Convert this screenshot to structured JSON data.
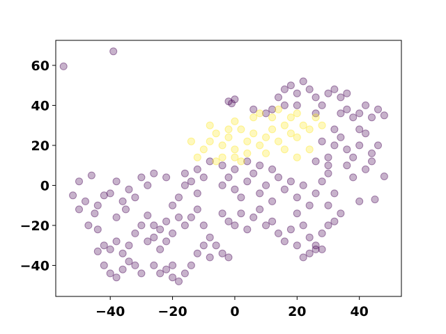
{
  "chart_data": {
    "type": "scatter",
    "title": "",
    "xlabel": "",
    "ylabel": "",
    "xlim": [
      -57.5,
      53.5
    ],
    "ylim": [
      -55.5,
      72.5
    ],
    "xticks": [
      -40,
      -20,
      0,
      20,
      40
    ],
    "yticks": [
      -40,
      -20,
      0,
      20,
      40,
      60
    ],
    "xtick_labels": [
      "−40",
      "−20",
      "0",
      "20",
      "40"
    ],
    "ytick_labels": [
      "−40",
      "−20",
      "0",
      "20",
      "40",
      "60"
    ],
    "grid": false,
    "legend": "none",
    "marker_opacity": 0.3,
    "series": [
      {
        "color": "#440154",
        "points": [
          [
            -55,
            59.5
          ],
          [
            -39,
            67
          ],
          [
            -46,
            5
          ],
          [
            -50,
            2
          ],
          [
            -52,
            -5
          ],
          [
            -48,
            -8
          ],
          [
            -44,
            -10
          ],
          [
            -42,
            -5
          ],
          [
            -45,
            -14
          ],
          [
            -50,
            -12
          ],
          [
            -47,
            -20
          ],
          [
            -44,
            -22
          ],
          [
            -40,
            -4
          ],
          [
            -38,
            2
          ],
          [
            -36,
            -8
          ],
          [
            -34,
            -2
          ],
          [
            -32,
            -6
          ],
          [
            -30,
            4
          ],
          [
            -28,
            0
          ],
          [
            -35,
            -12
          ],
          [
            -38,
            -16
          ],
          [
            -42,
            -30
          ],
          [
            -40,
            -32
          ],
          [
            -38,
            -28
          ],
          [
            -36,
            -34
          ],
          [
            -44,
            -33
          ],
          [
            -34,
            -30
          ],
          [
            -42,
            -40
          ],
          [
            -40,
            -44
          ],
          [
            -38,
            -46
          ],
          [
            -36,
            -42
          ],
          [
            -34,
            -38
          ],
          [
            -32,
            -40
          ],
          [
            -30,
            -44
          ],
          [
            -26,
            -40
          ],
          [
            -24,
            -44
          ],
          [
            -22,
            -42
          ],
          [
            -20,
            -46
          ],
          [
            -18,
            -48
          ],
          [
            -20,
            -40
          ],
          [
            -16,
            -44
          ],
          [
            -14,
            -40
          ],
          [
            -28,
            -15
          ],
          [
            -26,
            -20
          ],
          [
            -24,
            -22
          ],
          [
            -22,
            -18
          ],
          [
            -20,
            -24
          ],
          [
            -18,
            -16
          ],
          [
            -16,
            -20
          ],
          [
            -22,
            -28
          ],
          [
            -26,
            -26
          ],
          [
            -30,
            -20
          ],
          [
            -32,
            -24
          ],
          [
            -28,
            -28
          ],
          [
            -24,
            -32
          ],
          [
            -20,
            -10
          ],
          [
            -18,
            -6
          ],
          [
            -16,
            0
          ],
          [
            -14,
            2
          ],
          [
            -12,
            -4
          ],
          [
            -10,
            4
          ],
          [
            -12,
            -12
          ],
          [
            -14,
            -16
          ],
          [
            -10,
            -20
          ],
          [
            -8,
            -26
          ],
          [
            -6,
            -30
          ],
          [
            -4,
            -34
          ],
          [
            -2,
            -36
          ],
          [
            -10,
            -30
          ],
          [
            -12,
            -34
          ],
          [
            -8,
            -36
          ],
          [
            -4,
            0
          ],
          [
            -2,
            4
          ],
          [
            0,
            -2
          ],
          [
            2,
            -6
          ],
          [
            4,
            2
          ],
          [
            6,
            6
          ],
          [
            8,
            -4
          ],
          [
            10,
            0
          ],
          [
            12,
            -8
          ],
          [
            14,
            4
          ],
          [
            -4,
            -14
          ],
          [
            -2,
            -18
          ],
          [
            0,
            -20
          ],
          [
            2,
            -14
          ],
          [
            4,
            -22
          ],
          [
            6,
            -16
          ],
          [
            8,
            -12
          ],
          [
            10,
            -20
          ],
          [
            12,
            -18
          ],
          [
            16,
            -2
          ],
          [
            18,
            2
          ],
          [
            20,
            -6
          ],
          [
            22,
            0
          ],
          [
            24,
            -10
          ],
          [
            26,
            -4
          ],
          [
            28,
            2
          ],
          [
            20,
            -14
          ],
          [
            22,
            -20
          ],
          [
            14,
            -24
          ],
          [
            16,
            -28
          ],
          [
            18,
            -22
          ],
          [
            20,
            -30
          ],
          [
            24,
            -26
          ],
          [
            26,
            -30
          ],
          [
            28,
            -24
          ],
          [
            30,
            -20
          ],
          [
            24,
            -34
          ],
          [
            26,
            -32
          ],
          [
            22,
            -36
          ],
          [
            28,
            -32
          ],
          [
            32,
            -18
          ],
          [
            34,
            -14
          ],
          [
            30,
            -10
          ],
          [
            32,
            -4
          ],
          [
            -8,
            12
          ],
          [
            -4,
            10
          ],
          [
            0,
            8
          ],
          [
            4,
            12
          ],
          [
            8,
            10
          ],
          [
            12,
            8
          ],
          [
            -12,
            8
          ],
          [
            -16,
            6
          ],
          [
            -22,
            4
          ],
          [
            -26,
            6
          ],
          [
            30,
            14
          ],
          [
            32,
            20
          ],
          [
            34,
            24
          ],
          [
            36,
            18
          ],
          [
            38,
            14
          ],
          [
            40,
            20
          ],
          [
            42,
            26
          ],
          [
            44,
            16
          ],
          [
            46,
            20
          ],
          [
            36,
            10
          ],
          [
            32,
            28
          ],
          [
            28,
            22
          ],
          [
            30,
            6
          ],
          [
            38,
            4
          ],
          [
            42,
            8
          ],
          [
            44,
            12
          ],
          [
            48,
            4.5
          ],
          [
            45,
            -7
          ],
          [
            40,
            -8
          ],
          [
            34,
            36
          ],
          [
            36,
            38
          ],
          [
            38,
            34
          ],
          [
            40,
            36
          ],
          [
            42,
            40
          ],
          [
            44,
            34
          ],
          [
            46,
            38
          ],
          [
            48,
            35
          ],
          [
            40,
            28
          ],
          [
            14,
            44
          ],
          [
            16,
            48
          ],
          [
            18,
            50
          ],
          [
            20,
            46
          ],
          [
            22,
            52
          ],
          [
            24,
            48
          ],
          [
            26,
            44
          ],
          [
            20,
            40
          ],
          [
            16,
            40
          ],
          [
            30,
            46
          ],
          [
            32,
            48
          ],
          [
            34,
            44
          ],
          [
            36,
            46
          ],
          [
            28,
            40
          ],
          [
            26,
            36
          ],
          [
            12,
            38
          ],
          [
            10,
            36
          ],
          [
            -2,
            42
          ],
          [
            0,
            43
          ],
          [
            -1,
            41
          ],
          [
            6,
            38
          ],
          [
            30,
            10
          ],
          [
            26,
            12
          ]
        ]
      },
      {
        "color": "#fde725",
        "points": [
          [
            -10,
            18
          ],
          [
            -8,
            22
          ],
          [
            -6,
            26
          ],
          [
            -4,
            20
          ],
          [
            -2,
            24
          ],
          [
            0,
            18
          ],
          [
            2,
            28
          ],
          [
            4,
            22
          ],
          [
            6,
            26
          ],
          [
            8,
            20
          ],
          [
            10,
            24
          ],
          [
            12,
            28
          ],
          [
            14,
            22
          ],
          [
            16,
            30
          ],
          [
            18,
            26
          ],
          [
            20,
            24
          ],
          [
            22,
            30
          ],
          [
            24,
            28
          ],
          [
            26,
            34
          ],
          [
            28,
            30
          ],
          [
            -12,
            14
          ],
          [
            -6,
            12
          ],
          [
            0,
            14
          ],
          [
            4,
            16
          ],
          [
            10,
            16
          ],
          [
            16,
            18
          ],
          [
            20,
            14
          ],
          [
            24,
            18
          ],
          [
            -14,
            22
          ],
          [
            -8,
            30
          ],
          [
            0,
            32
          ],
          [
            6,
            34
          ],
          [
            12,
            34
          ],
          [
            18,
            34
          ],
          [
            8,
            36
          ],
          [
            -2,
            28
          ],
          [
            14,
            38
          ],
          [
            20,
            36
          ],
          [
            -4,
            14
          ],
          [
            2,
            12
          ]
        ]
      }
    ]
  }
}
